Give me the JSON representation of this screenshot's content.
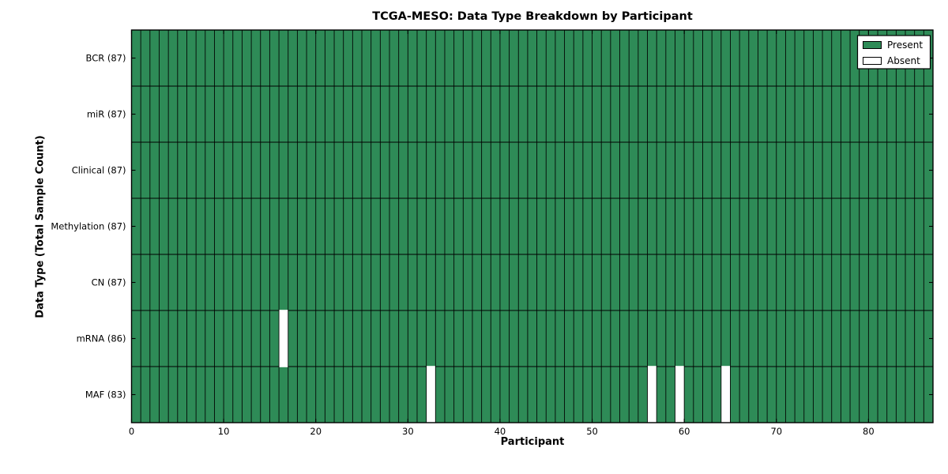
{
  "chart_data": {
    "type": "heatmap",
    "title": "TCGA-MESO: Data Type Breakdown by Participant",
    "xlabel": "Participant",
    "ylabel": "Data Type (Total Sample Count)",
    "x_axis": {
      "min": 0,
      "max": 87,
      "ticks": [
        0,
        10,
        20,
        30,
        40,
        50,
        60,
        70,
        80
      ]
    },
    "participants_total": 87,
    "rows": [
      {
        "label": "BCR (87)",
        "data_type": "BCR",
        "present_count": 87,
        "absent_participants": []
      },
      {
        "label": "miR (87)",
        "data_type": "miR",
        "present_count": 87,
        "absent_participants": []
      },
      {
        "label": "Clinical (87)",
        "data_type": "Clinical",
        "present_count": 87,
        "absent_participants": []
      },
      {
        "label": "Methylation (87)",
        "data_type": "Methylation",
        "present_count": 87,
        "absent_participants": []
      },
      {
        "label": "CN (87)",
        "data_type": "CN",
        "present_count": 87,
        "absent_participants": []
      },
      {
        "label": "mRNA (86)",
        "data_type": "mRNA",
        "present_count": 86,
        "absent_participants": [
          16
        ]
      },
      {
        "label": "MAF (83)",
        "data_type": "MAF",
        "present_count": 83,
        "absent_participants": [
          32,
          56,
          59,
          64
        ]
      }
    ],
    "legend": {
      "position": "upper right",
      "entries": [
        {
          "label": "Present",
          "color": "#2e8b57"
        },
        {
          "label": "Absent",
          "color": "#ffffff"
        }
      ]
    },
    "colors": {
      "present": "#2e8b57",
      "absent": "#ffffff",
      "grid": "#000000",
      "spine": "#000000",
      "background": "#ffffff"
    },
    "grid": true
  }
}
